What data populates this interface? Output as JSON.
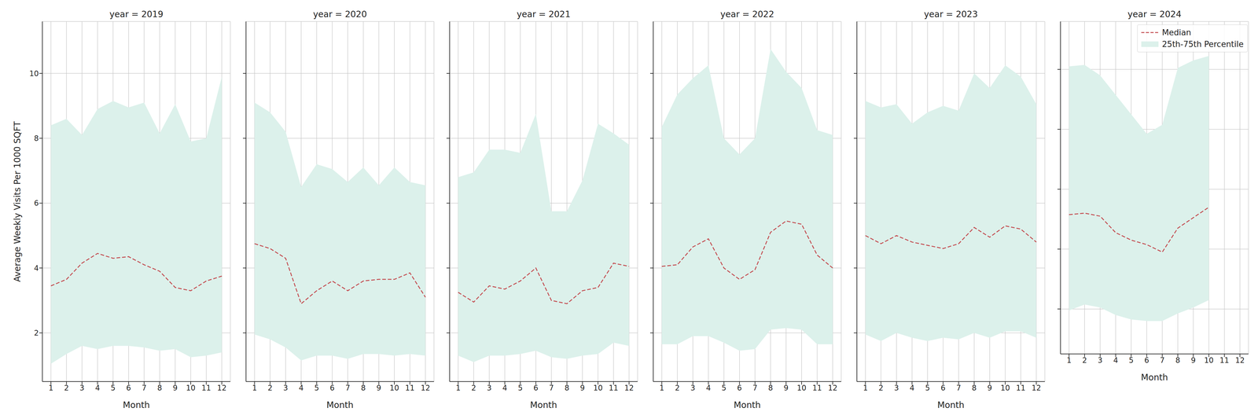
{
  "chart_data": [
    {
      "type": "line",
      "title": "year = 2019",
      "xlabel": "Month",
      "ylabel": "Average Weekly Visits Per 1000 SQFT",
      "x": [
        1,
        2,
        3,
        4,
        5,
        6,
        7,
        8,
        9,
        10,
        11,
        12
      ],
      "xlim": [
        0.45,
        12.55
      ],
      "xticks": [
        1,
        2,
        3,
        4,
        5,
        6,
        7,
        8,
        9,
        10,
        11,
        12
      ],
      "ylim": [
        0.5,
        11.6
      ],
      "yticks": [
        2,
        4,
        6,
        8,
        10
      ],
      "grid": true,
      "series": [
        {
          "name": "Median",
          "type": "line",
          "color": "#c44e52",
          "line_style": "dashed",
          "values": [
            3.45,
            3.65,
            4.15,
            4.45,
            4.3,
            4.35,
            4.1,
            3.9,
            3.4,
            3.3,
            3.6,
            3.75
          ]
        },
        {
          "name": "25th-75th Percentile",
          "type": "band",
          "color": "#dcf1eb",
          "lower": [
            1.05,
            1.35,
            1.6,
            1.5,
            1.6,
            1.6,
            1.55,
            1.45,
            1.5,
            1.25,
            1.3,
            1.4
          ],
          "upper": [
            8.4,
            8.6,
            8.1,
            8.9,
            9.15,
            8.95,
            9.1,
            8.15,
            9.05,
            7.9,
            8.0,
            9.9
          ]
        }
      ]
    },
    {
      "type": "line",
      "title": "year = 2020",
      "xlabel": "Month",
      "x": [
        1,
        2,
        3,
        4,
        5,
        6,
        7,
        8,
        9,
        10,
        11,
        12
      ],
      "xlim": [
        0.45,
        12.55
      ],
      "xticks": [
        1,
        2,
        3,
        4,
        5,
        6,
        7,
        8,
        9,
        10,
        11,
        12
      ],
      "ylim": [
        0.5,
        11.6
      ],
      "yticks": [
        2,
        4,
        6,
        8,
        10
      ],
      "grid": true,
      "tick_labels": "x",
      "series": [
        {
          "name": "Median",
          "type": "line",
          "color": "#c44e52",
          "line_style": "dashed",
          "values": [
            4.75,
            4.6,
            4.3,
            2.9,
            3.3,
            3.6,
            3.3,
            3.6,
            3.65,
            3.65,
            3.85,
            3.1
          ]
        },
        {
          "name": "25th-75th Percentile",
          "type": "band",
          "color": "#dcf1eb",
          "lower": [
            1.95,
            1.8,
            1.55,
            1.15,
            1.3,
            1.3,
            1.2,
            1.35,
            1.35,
            1.3,
            1.35,
            1.3
          ],
          "upper": [
            9.1,
            8.8,
            8.2,
            6.5,
            7.2,
            7.05,
            6.65,
            7.1,
            6.55,
            7.1,
            6.65,
            6.55
          ]
        }
      ]
    },
    {
      "type": "line",
      "title": "year = 2021",
      "xlabel": "Month",
      "x": [
        1,
        2,
        3,
        4,
        5,
        6,
        7,
        8,
        9,
        10,
        11,
        12
      ],
      "xlim": [
        0.45,
        12.55
      ],
      "xticks": [
        1,
        2,
        3,
        4,
        5,
        6,
        7,
        8,
        9,
        10,
        11,
        12
      ],
      "ylim": [
        0.5,
        11.6
      ],
      "yticks": [
        2,
        4,
        6,
        8,
        10
      ],
      "grid": true,
      "tick_labels": "x",
      "series": [
        {
          "name": "Median",
          "type": "line",
          "color": "#c44e52",
          "line_style": "dashed",
          "values": [
            3.25,
            2.95,
            3.45,
            3.35,
            3.6,
            4.0,
            3.0,
            2.9,
            3.3,
            3.4,
            4.15,
            4.05
          ]
        },
        {
          "name": "25th-75th Percentile",
          "type": "band",
          "color": "#dcf1eb",
          "lower": [
            1.3,
            1.1,
            1.3,
            1.3,
            1.35,
            1.45,
            1.25,
            1.2,
            1.3,
            1.35,
            1.7,
            1.6
          ],
          "upper": [
            6.8,
            6.95,
            7.65,
            7.65,
            7.55,
            8.75,
            5.75,
            5.75,
            6.7,
            8.45,
            8.15,
            7.8
          ]
        }
      ]
    },
    {
      "type": "line",
      "title": "year = 2022",
      "xlabel": "Month",
      "x": [
        1,
        2,
        3,
        4,
        5,
        6,
        7,
        8,
        9,
        10,
        11,
        12
      ],
      "xlim": [
        0.45,
        12.55
      ],
      "xticks": [
        1,
        2,
        3,
        4,
        5,
        6,
        7,
        8,
        9,
        10,
        11,
        12
      ],
      "ylim": [
        0.5,
        11.6
      ],
      "yticks": [
        2,
        4,
        6,
        8,
        10
      ],
      "grid": true,
      "tick_labels": "x",
      "series": [
        {
          "name": "Median",
          "type": "line",
          "color": "#c44e52",
          "line_style": "dashed",
          "values": [
            4.05,
            4.1,
            4.65,
            4.9,
            4.0,
            3.65,
            3.95,
            5.1,
            5.45,
            5.35,
            4.4,
            4.0
          ]
        },
        {
          "name": "25th-75th Percentile",
          "type": "band",
          "color": "#dcf1eb",
          "lower": [
            1.65,
            1.65,
            1.9,
            1.9,
            1.7,
            1.45,
            1.5,
            2.1,
            2.15,
            2.1,
            1.65,
            1.65
          ],
          "upper": [
            8.35,
            9.35,
            9.85,
            10.25,
            8.0,
            7.5,
            8.0,
            10.75,
            10.05,
            9.55,
            8.25,
            8.1
          ]
        }
      ]
    },
    {
      "type": "line",
      "title": "year = 2023",
      "xlabel": "Month",
      "x": [
        1,
        2,
        3,
        4,
        5,
        6,
        7,
        8,
        9,
        10,
        11,
        12
      ],
      "xlim": [
        0.45,
        12.55
      ],
      "xticks": [
        1,
        2,
        3,
        4,
        5,
        6,
        7,
        8,
        9,
        10,
        11,
        12
      ],
      "ylim": [
        0.5,
        11.6
      ],
      "yticks": [
        2,
        4,
        6,
        8,
        10
      ],
      "grid": true,
      "tick_labels": "x",
      "series": [
        {
          "name": "Median",
          "type": "line",
          "color": "#c44e52",
          "line_style": "dashed",
          "values": [
            5.0,
            4.75,
            5.0,
            4.8,
            4.7,
            4.6,
            4.75,
            5.25,
            4.95,
            5.3,
            5.2,
            4.8
          ]
        },
        {
          "name": "25th-75th Percentile",
          "type": "band",
          "color": "#dcf1eb",
          "lower": [
            1.95,
            1.75,
            2.0,
            1.85,
            1.75,
            1.85,
            1.8,
            2.0,
            1.85,
            2.05,
            2.05,
            1.85
          ],
          "upper": [
            9.15,
            8.95,
            9.05,
            8.45,
            8.8,
            9.0,
            8.85,
            10.0,
            9.55,
            10.25,
            9.9,
            9.05
          ]
        }
      ]
    },
    {
      "type": "line",
      "title": "year = 2024",
      "xlabel": "Month",
      "x": [
        1,
        2,
        3,
        4,
        5,
        6,
        7,
        8,
        9,
        10,
        11,
        12
      ],
      "xlim": [
        0.45,
        12.55
      ],
      "xticks": [
        1,
        2,
        3,
        4,
        5,
        6,
        7,
        8,
        9,
        10,
        11,
        12
      ],
      "ylim": [
        0.5,
        11.6
      ],
      "yticks": [
        2,
        4,
        6,
        8,
        10
      ],
      "grid": true,
      "tick_labels": "x",
      "legend": "upper right",
      "series": [
        {
          "name": "Median",
          "type": "line",
          "color": "#c44e52",
          "line_style": "dashed",
          "values": [
            5.15,
            5.2,
            5.1,
            4.55,
            4.3,
            4.15,
            3.9,
            4.7,
            5.05,
            5.4,
            null,
            null
          ]
        },
        {
          "name": "25th-75th Percentile",
          "type": "band",
          "color": "#dcf1eb",
          "lower": [
            1.95,
            2.15,
            2.05,
            1.8,
            1.65,
            1.6,
            1.6,
            1.85,
            2.05,
            2.3,
            null,
            null
          ],
          "upper": [
            10.1,
            10.15,
            9.8,
            9.15,
            8.5,
            7.85,
            8.15,
            10.05,
            10.3,
            10.45,
            null,
            null
          ]
        }
      ]
    }
  ]
}
